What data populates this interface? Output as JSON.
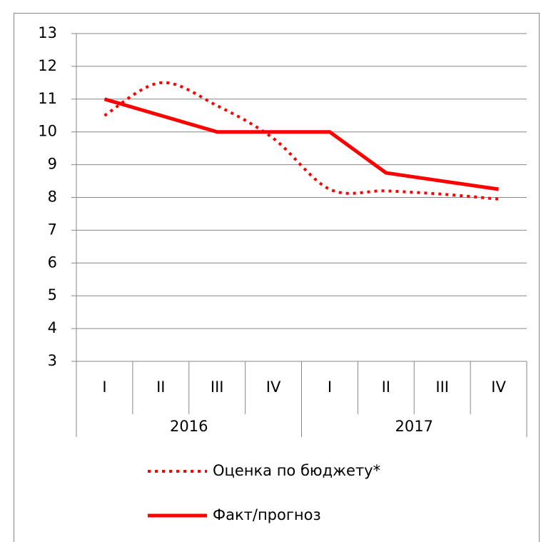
{
  "chart_data": {
    "type": "line",
    "categories": [
      "I",
      "II",
      "III",
      "IV",
      "I",
      "II",
      "III",
      "IV"
    ],
    "category_groups": [
      "2016",
      "2017"
    ],
    "series": [
      {
        "name": "Оценка по бюджету*",
        "color": "#ff0000",
        "style": "dotted",
        "smooth": true,
        "values": [
          10.5,
          11.5,
          10.8,
          9.8,
          8.25,
          8.2,
          8.1,
          7.95
        ]
      },
      {
        "name": "Факт/прогноз",
        "color": "#ff0000",
        "style": "solid",
        "smooth": false,
        "values": [
          11,
          10.5,
          10,
          10,
          10,
          8.75,
          8.5,
          8.25
        ]
      }
    ],
    "ylim": [
      3,
      13
    ],
    "yticks": [
      3,
      4,
      5,
      6,
      7,
      8,
      9,
      10,
      11,
      12,
      13
    ],
    "grid": true
  }
}
